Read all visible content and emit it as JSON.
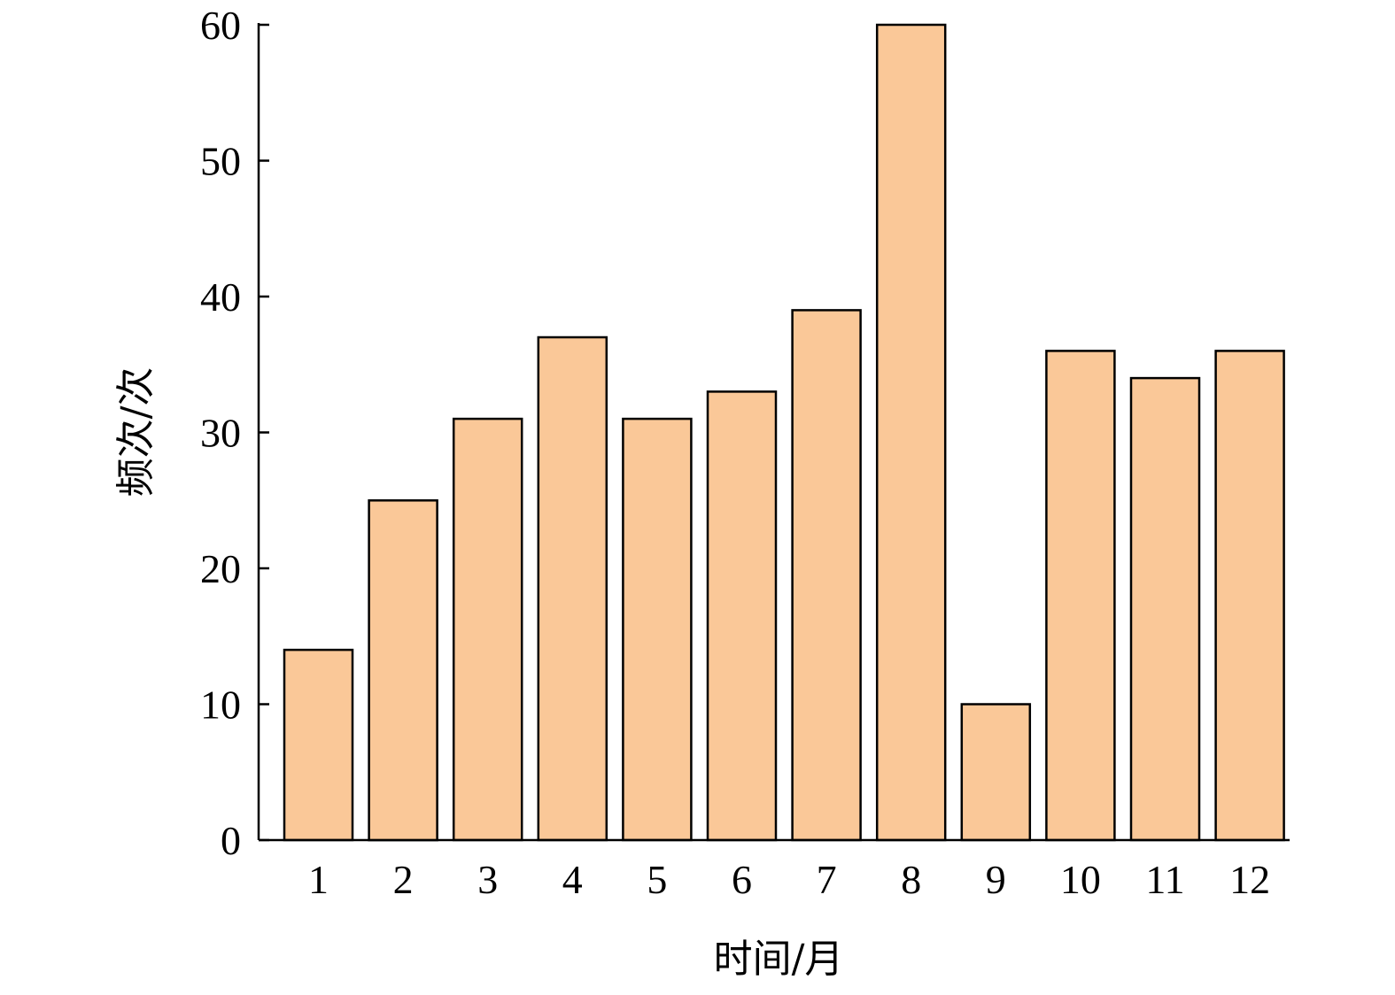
{
  "chart_data": {
    "type": "bar",
    "categories": [
      "1",
      "2",
      "3",
      "4",
      "5",
      "6",
      "7",
      "8",
      "9",
      "10",
      "11",
      "12"
    ],
    "values": [
      14,
      25,
      31,
      37,
      31,
      33,
      39,
      60,
      10,
      36,
      34,
      36
    ],
    "title": "",
    "xlabel": "时间/月",
    "ylabel": "频次/次",
    "ylim": [
      0,
      60
    ],
    "yticks": [
      "0",
      "10",
      "20",
      "30",
      "40",
      "50",
      "60"
    ],
    "grid": false,
    "legend": "none",
    "bar_color": "#FAC898",
    "edge_color": "#000000"
  }
}
